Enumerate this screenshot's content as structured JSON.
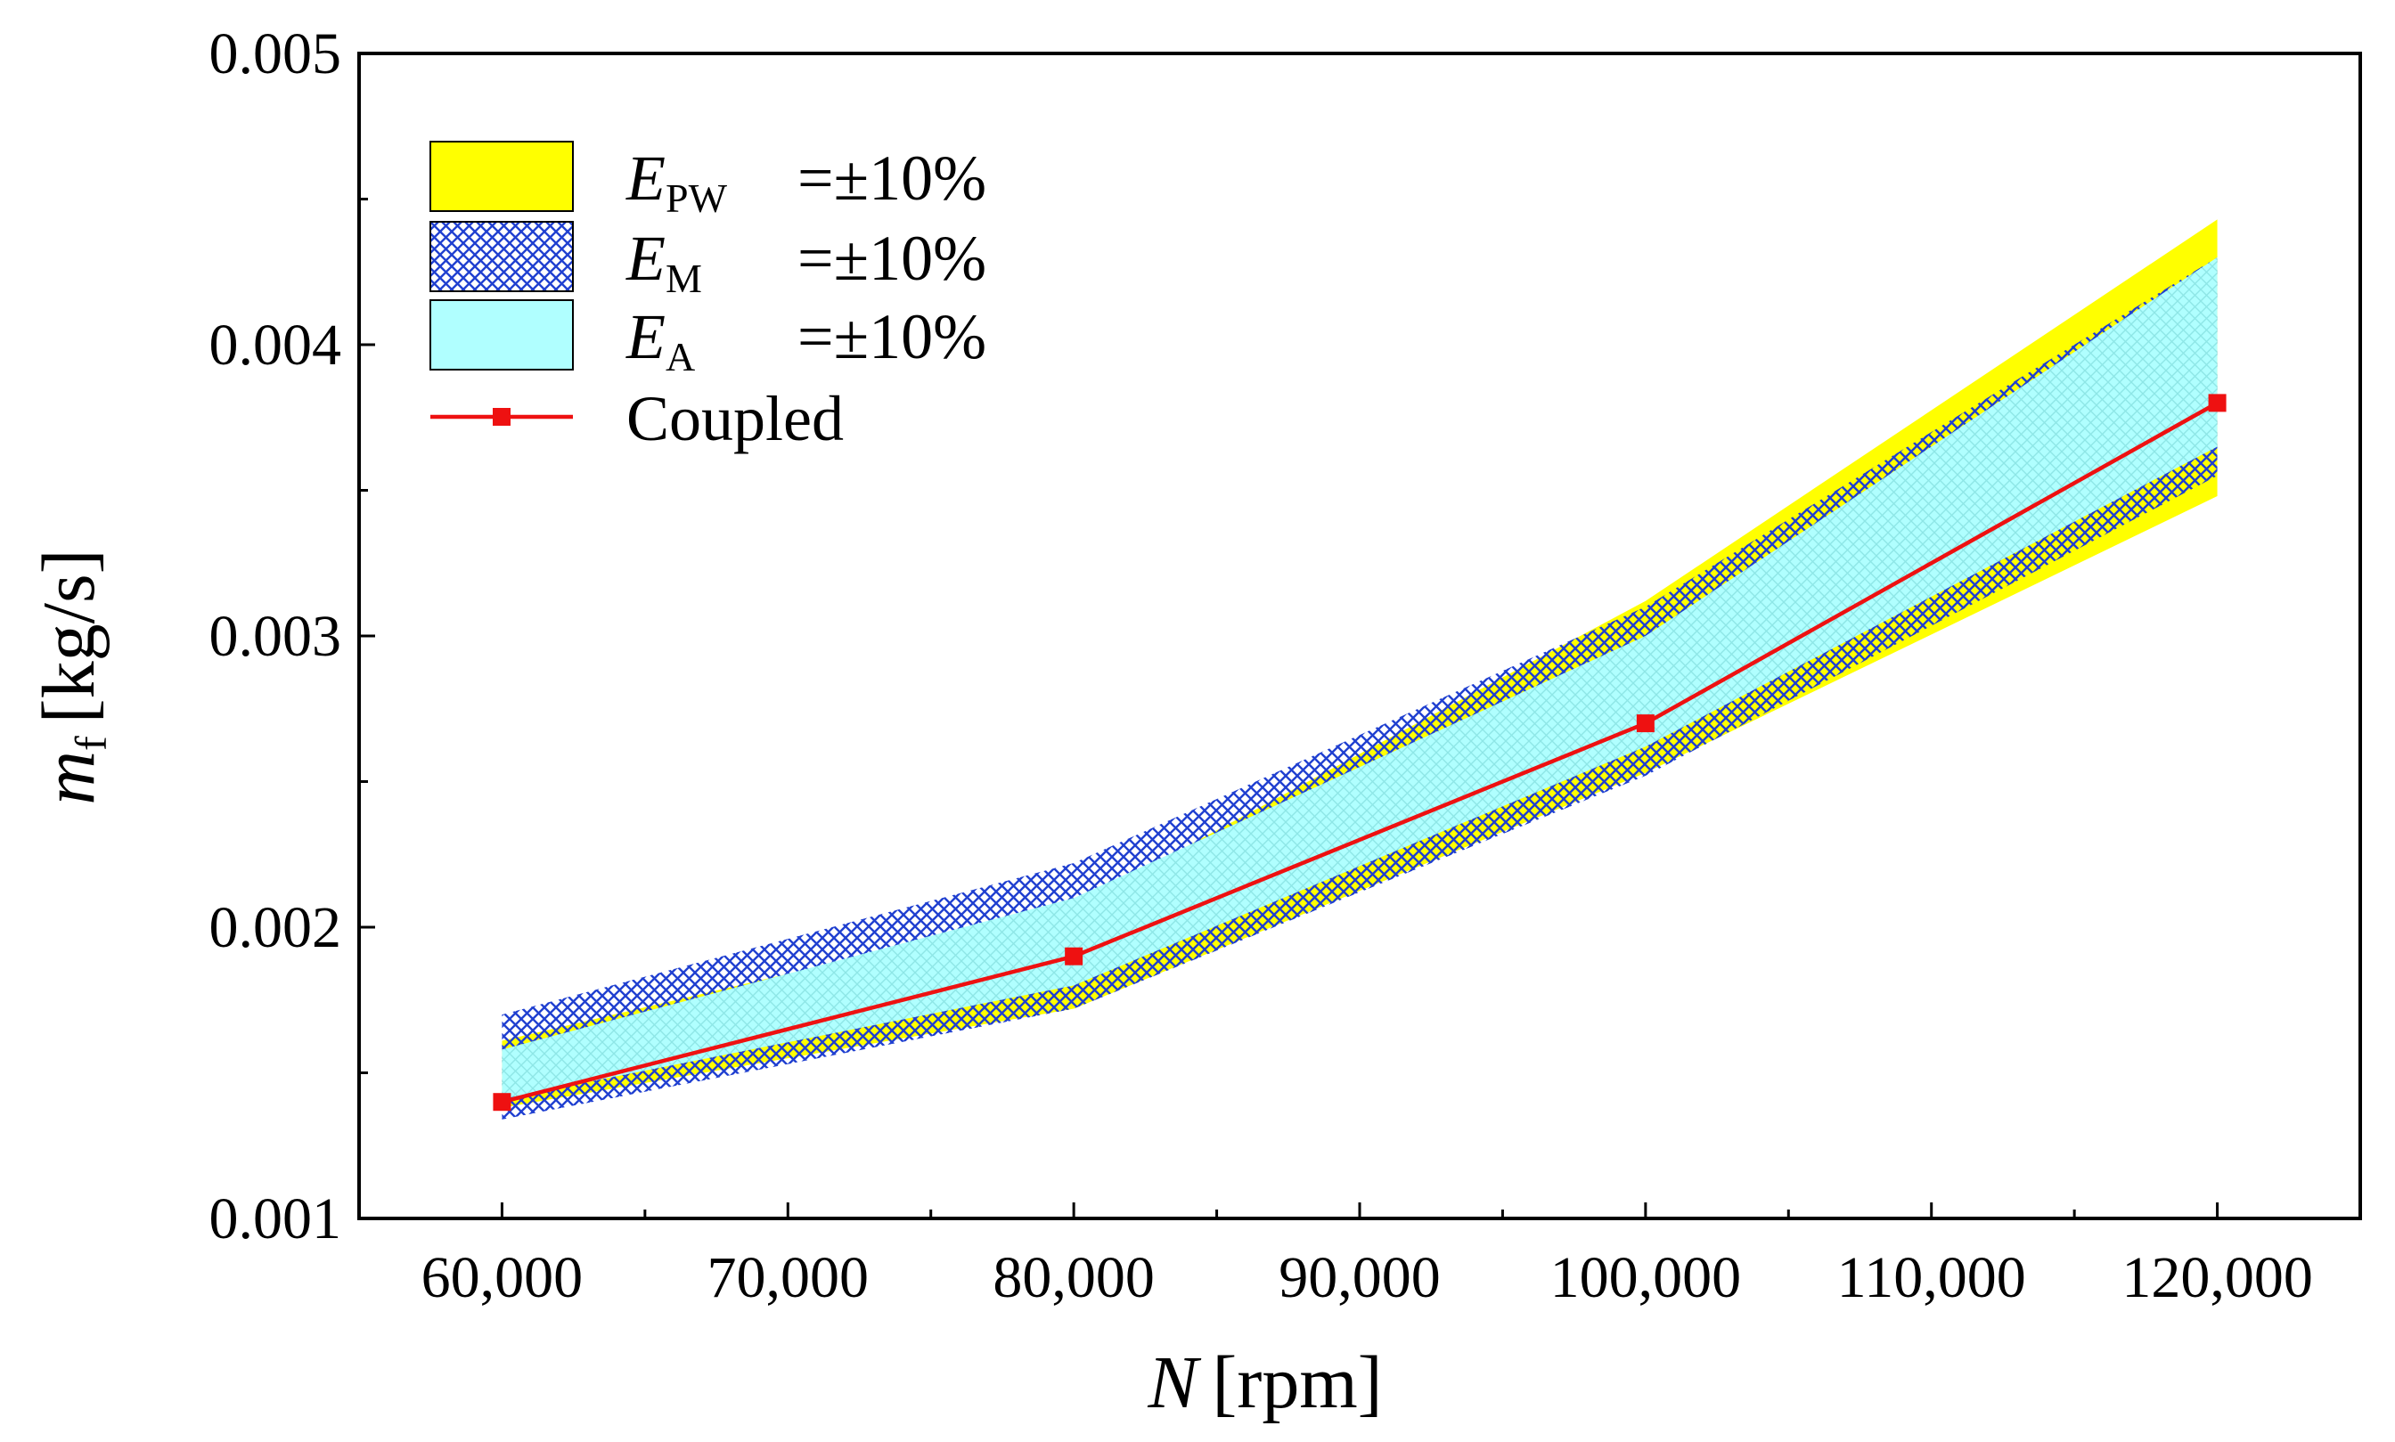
{
  "chart_data": {
    "type": "line",
    "title": "",
    "xlabel": {
      "symbol": "N",
      "unit": "[rpm]"
    },
    "ylabel": {
      "symbol": "m",
      "subscript": "f",
      "unit": "[kg/s]"
    },
    "xlim": [
      55000,
      125000
    ],
    "ylim": [
      0.001,
      0.005
    ],
    "x_ticks": [
      60000,
      70000,
      80000,
      90000,
      100000,
      110000,
      120000
    ],
    "x_tick_labels": [
      "60,000",
      "70,000",
      "80,000",
      "90,000",
      "100,000",
      "110,000",
      "120,000"
    ],
    "x_minor_ticks": [
      65000,
      75000,
      85000,
      95000,
      105000,
      115000
    ],
    "y_ticks": [
      0.001,
      0.002,
      0.003,
      0.004,
      0.005
    ],
    "y_tick_labels": [
      "0.001",
      "0.002",
      "0.003",
      "0.004",
      "0.005"
    ],
    "y_minor_ticks": [
      0.0015,
      0.0025,
      0.0035,
      0.0045
    ],
    "grid": false,
    "legend_position": "top-left",
    "x": [
      60000,
      80000,
      100000,
      120000
    ],
    "series": [
      {
        "name": "Coupled",
        "kind": "line",
        "color": "#ee1111",
        "values": [
          0.0014,
          0.0019,
          0.0027,
          0.0038
        ]
      },
      {
        "name": "E_PW = ±10%",
        "kind": "band",
        "color": "#ffff00",
        "upper": [
          0.00161,
          0.00207,
          0.00312,
          0.00443
        ],
        "lower": [
          0.00138,
          0.00172,
          0.00253,
          0.00348
        ]
      },
      {
        "name": "E_M = ±10%",
        "kind": "band",
        "color": "#2040d0",
        "upper": [
          0.0017,
          0.00222,
          0.0031,
          0.0043
        ],
        "lower": [
          0.00134,
          0.00172,
          0.00252,
          0.00355
        ]
      },
      {
        "name": "E_A = ±10%",
        "kind": "band",
        "color": "#b0ffff",
        "upper": [
          0.00158,
          0.0021,
          0.003,
          0.0043
        ],
        "lower": [
          0.00141,
          0.0018,
          0.00262,
          0.00365
        ]
      }
    ],
    "legend": [
      {
        "label_main": "E",
        "label_sub": "PW",
        "label_rest": "=±10%"
      },
      {
        "label_main": "E",
        "label_sub": "M",
        "label_rest": "=±10%"
      },
      {
        "label_main": "E",
        "label_sub": "A",
        "label_rest": "=±10%"
      },
      {
        "label_main": "Coupled",
        "label_sub": "",
        "label_rest": ""
      }
    ]
  }
}
